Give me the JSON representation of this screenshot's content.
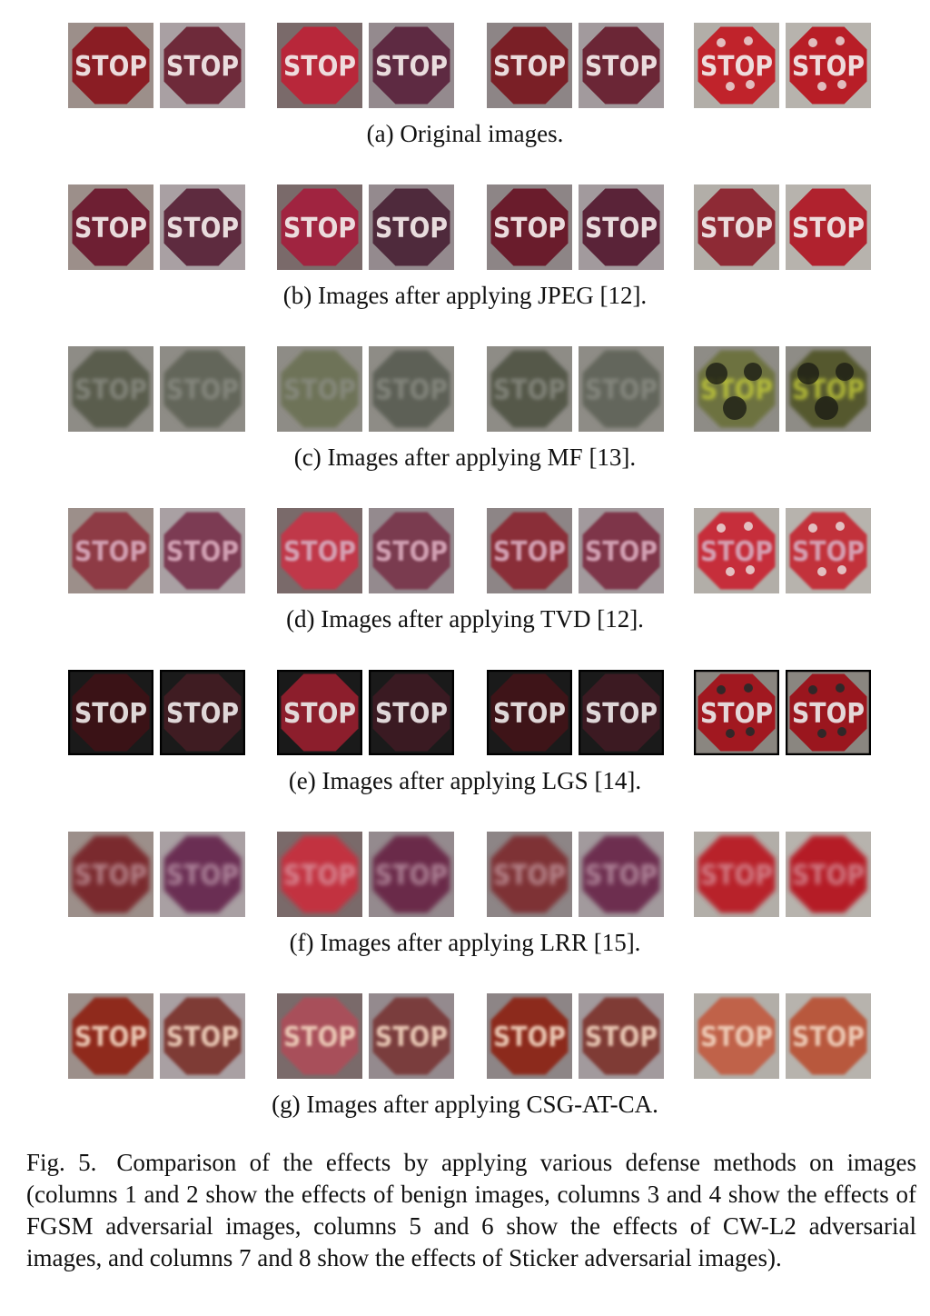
{
  "figure": {
    "label": "Fig. 5.",
    "caption": "Comparison of the effects by applying various defense methods on images (columns 1 and 2 show the effects of benign images, columns 3 and 4 show the effects of FGSM adversarial images, columns 5 and 6 show the effects of CW-L2 adversarial images, and columns 7 and 8 show the effects of Sticker adversarial images)."
  },
  "sign_text": "STOP",
  "rows": [
    {
      "id": "a",
      "caption": "(a) Original images.",
      "style": "original",
      "colors": [
        "#8a1d24",
        "#6e2a3a",
        "#b8273a",
        "#5e2a42",
        "#7a1f26",
        "#6b2636",
        "#c0232b",
        "#b81e27"
      ]
    },
    {
      "id": "b",
      "caption": "(b) Images after applying JPEG [12].",
      "style": "jpeg",
      "colors": [
        "#6e1f33",
        "#5e2b3f",
        "#a02440",
        "#4f2a3c",
        "#6a1c2c",
        "#5a2338",
        "#8e2a35",
        "#b0222e"
      ]
    },
    {
      "id": "c",
      "caption": "(c) Images after applying MF [13].",
      "style": "mf",
      "colors": [
        "#5a5d4e",
        "#64665a",
        "#6e7358",
        "#5d6156",
        "#54584a",
        "#63665b",
        "#6d7240",
        "#55582f"
      ]
    },
    {
      "id": "d",
      "caption": "(d) Images after applying TVD [12].",
      "style": "tvd",
      "colors": [
        "#8e3a44",
        "#7c3a52",
        "#c0384a",
        "#7a3a50",
        "#8a2e38",
        "#7e3648",
        "#c62f3a",
        "#c2323a"
      ]
    },
    {
      "id": "e",
      "caption": "(e) Images after applying LGS [14].",
      "style": "lgs",
      "colors": [
        "#3a1216",
        "#3f1c22",
        "#8c1e2c",
        "#3a1a22",
        "#3e1418",
        "#3c1a22",
        "#a11820",
        "#9a161e"
      ]
    },
    {
      "id": "f",
      "caption": "(f) Images after applying LRR [15].",
      "style": "lrr",
      "colors": [
        "#7a2a2e",
        "#6a2e52",
        "#c23040",
        "#6a2a48",
        "#7e3236",
        "#6d2f4f",
        "#b8222c",
        "#b51f28"
      ]
    },
    {
      "id": "g",
      "caption": "(g) Images after applying CSG-AT-CA.",
      "style": "csg",
      "colors": [
        "#8f2a1e",
        "#7e3a36",
        "#a8505a",
        "#7a3c3c",
        "#8c2c1e",
        "#7f3a36",
        "#c0624a",
        "#b8583e"
      ]
    }
  ]
}
